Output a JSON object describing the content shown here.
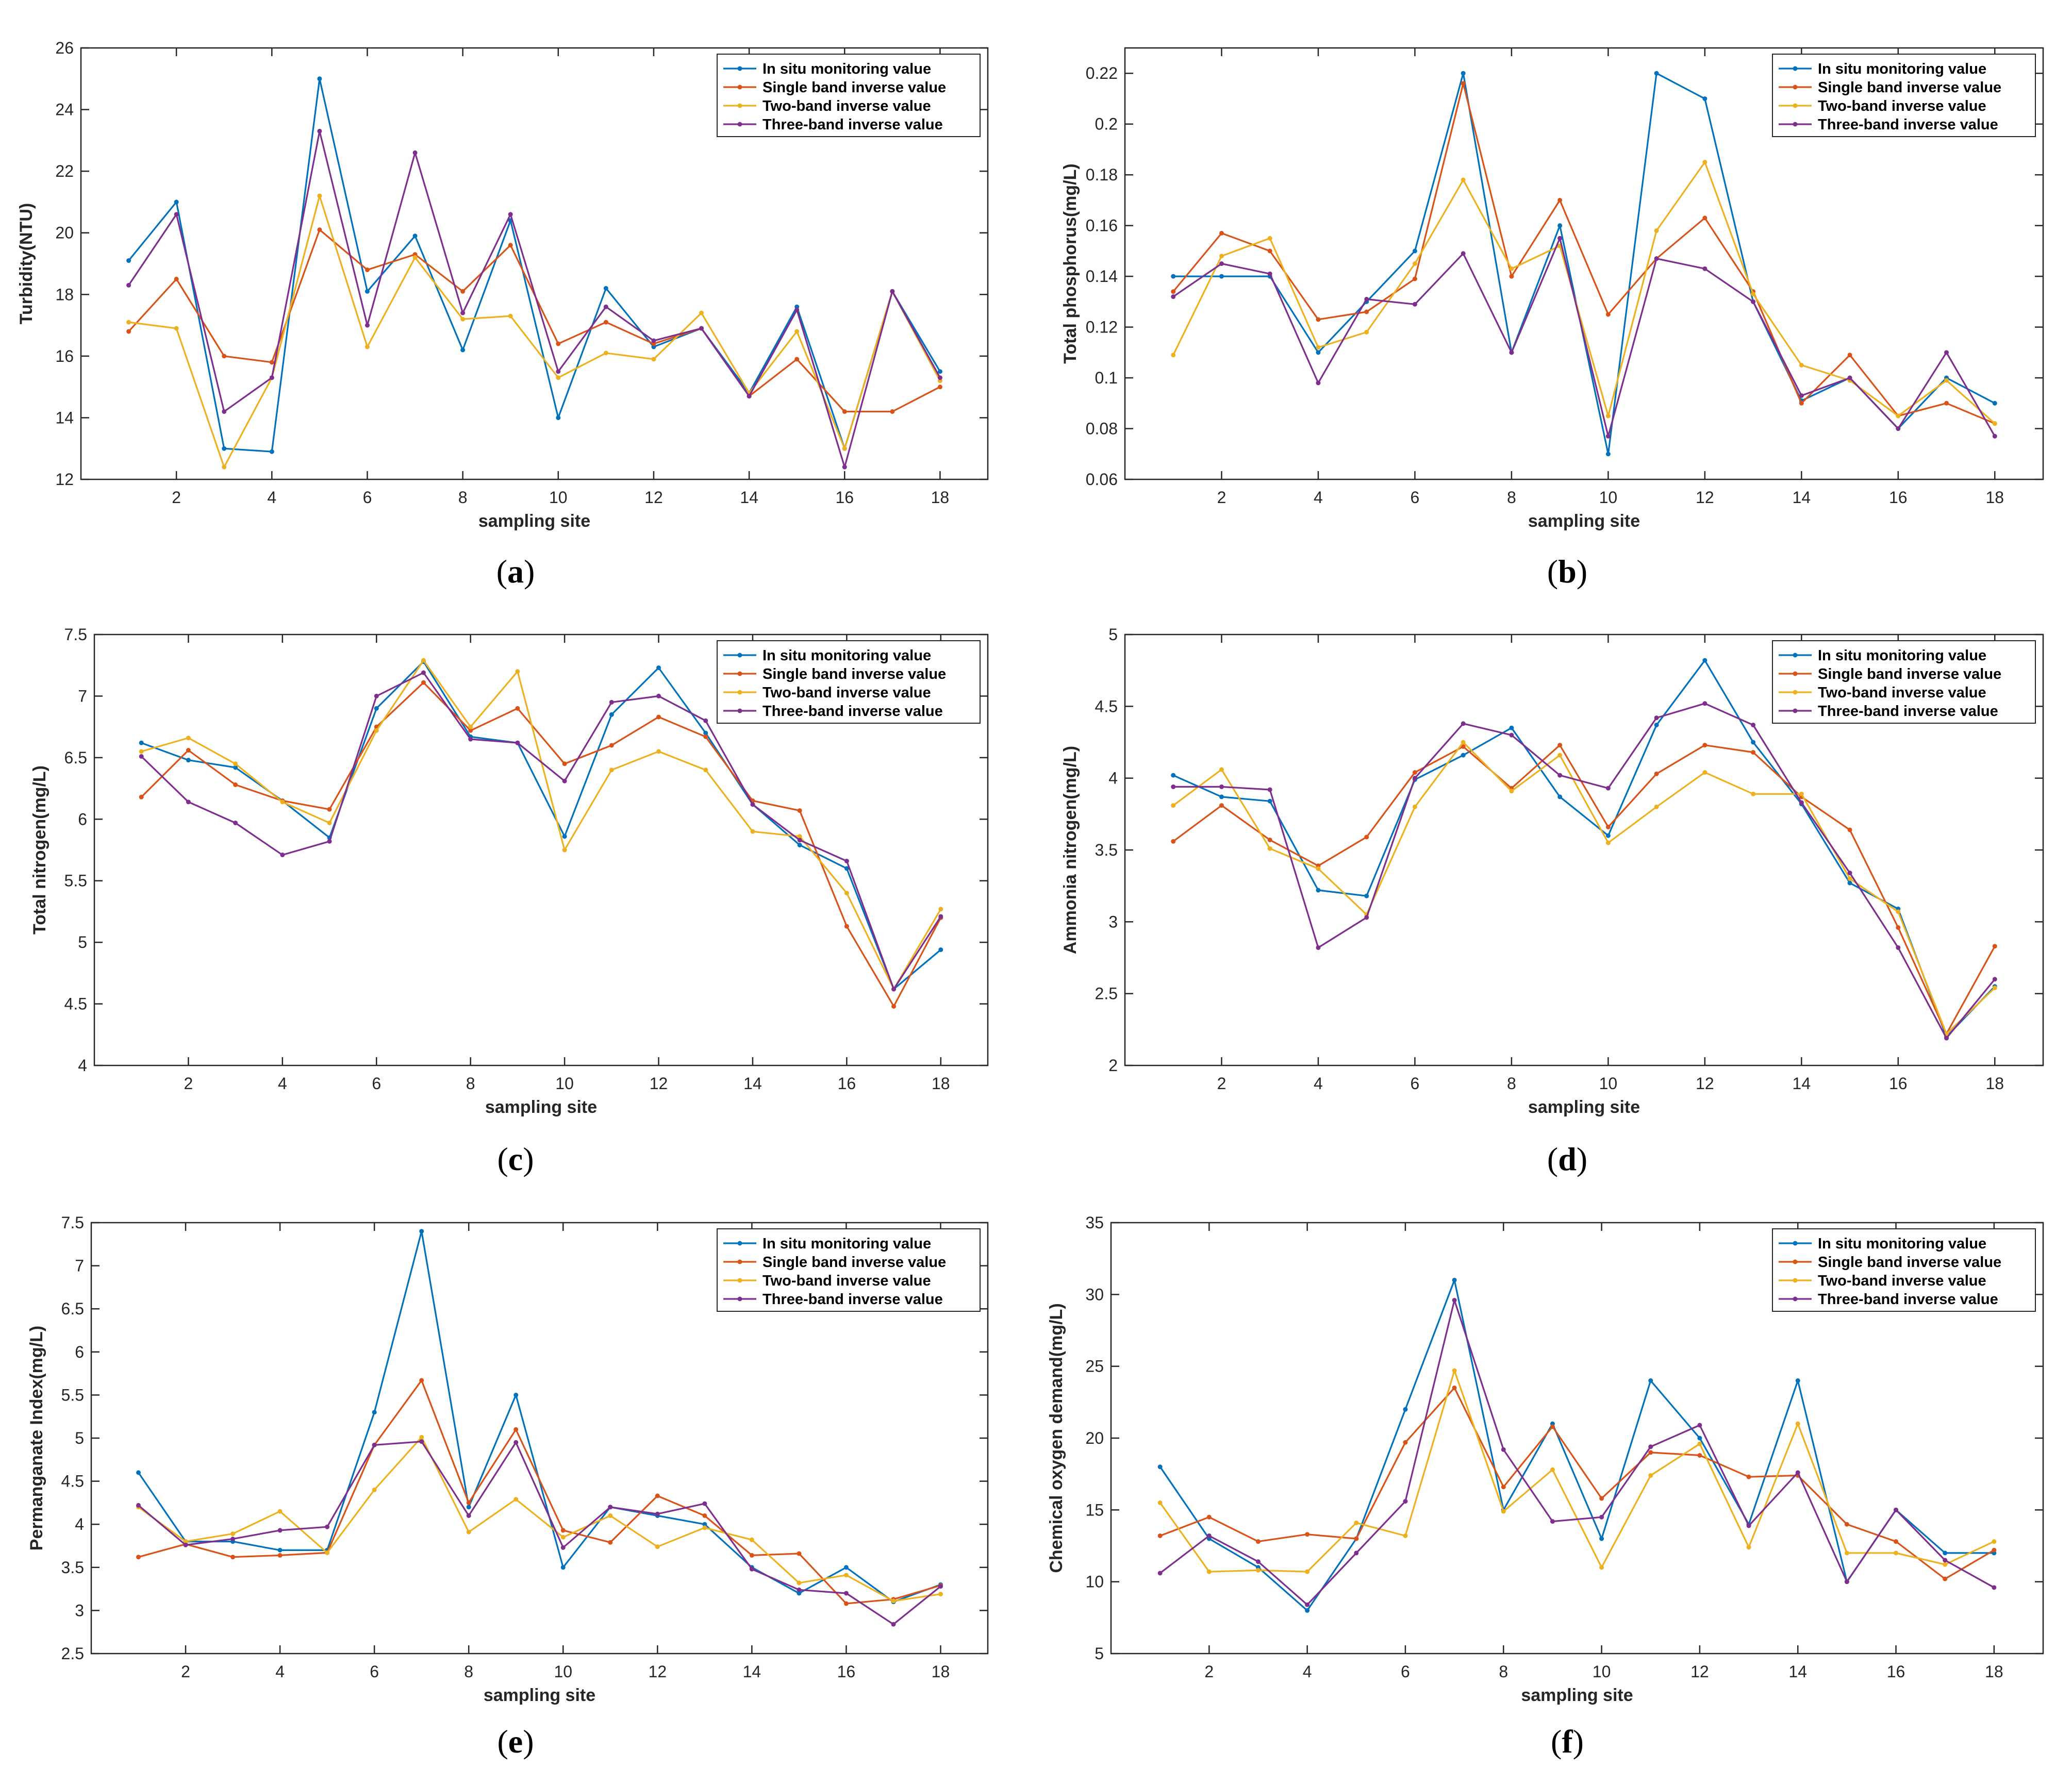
{
  "colors": {
    "in_situ": "#0072BD",
    "single": "#D95319",
    "two": "#EDB120",
    "three": "#7E2F8E",
    "axis": "#262626"
  },
  "chart_data": [
    {
      "panel": "a",
      "caption": "(a)",
      "caption_letter": "a",
      "type": "line",
      "xlabel": "sampling site",
      "ylabel": "Turbidity(NTU)",
      "xlim": [
        0,
        19
      ],
      "ylim": [
        12,
        26
      ],
      "xticks": [
        2,
        4,
        6,
        8,
        10,
        12,
        14,
        16,
        18
      ],
      "yticks": [
        12,
        14,
        16,
        18,
        20,
        22,
        24,
        26
      ],
      "ytick_labels": [
        "12",
        "14",
        "16",
        "18",
        "20",
        "22",
        "24",
        "26"
      ],
      "legend_position": "top-right",
      "x": [
        1,
        2,
        3,
        4,
        5,
        6,
        7,
        8,
        9,
        10,
        11,
        12,
        13,
        14,
        15,
        16,
        17,
        18
      ],
      "series": [
        {
          "name": "In situ monitoring value",
          "color_key": "in_situ",
          "values": [
            19.1,
            21.0,
            13.0,
            12.9,
            25.0,
            18.1,
            19.9,
            16.2,
            20.4,
            14.0,
            18.2,
            16.3,
            16.9,
            14.8,
            17.6,
            13.0,
            18.1,
            15.5
          ]
        },
        {
          "name": "Single band inverse value",
          "color_key": "single",
          "values": [
            16.8,
            18.5,
            16.0,
            15.8,
            20.1,
            18.8,
            19.3,
            18.1,
            19.6,
            16.4,
            17.1,
            16.4,
            16.9,
            14.7,
            15.9,
            14.2,
            14.2,
            15.0
          ]
        },
        {
          "name": "Two-band inverse value",
          "color_key": "two",
          "values": [
            17.1,
            16.9,
            12.4,
            15.3,
            21.2,
            16.3,
            19.2,
            17.2,
            17.3,
            15.3,
            16.1,
            15.9,
            17.4,
            14.8,
            16.8,
            13.0,
            18.1,
            15.2
          ]
        },
        {
          "name": "Three-band inverse value",
          "color_key": "three",
          "values": [
            18.3,
            20.6,
            14.2,
            15.3,
            23.3,
            17.0,
            22.6,
            17.4,
            20.6,
            15.5,
            17.6,
            16.5,
            16.9,
            14.7,
            17.5,
            12.4,
            18.1,
            15.3
          ]
        }
      ]
    },
    {
      "panel": "b",
      "caption": "(b)",
      "caption_letter": "b",
      "type": "line",
      "xlabel": "sampling site",
      "ylabel": "Total phosphorus(mg/L)",
      "xlim": [
        0,
        19
      ],
      "ylim": [
        0.06,
        0.23
      ],
      "xticks": [
        2,
        4,
        6,
        8,
        10,
        12,
        14,
        16,
        18
      ],
      "yticks": [
        0.06,
        0.08,
        0.1,
        0.12,
        0.14,
        0.16,
        0.18,
        0.2,
        0.22
      ],
      "ytick_labels": [
        "0.06",
        "0.08",
        "0.1",
        "0.12",
        "0.14",
        "0.16",
        "0.18",
        "0.2",
        "0.22"
      ],
      "legend_position": "top-right",
      "x": [
        1,
        2,
        3,
        4,
        5,
        6,
        7,
        8,
        9,
        10,
        11,
        12,
        13,
        14,
        15,
        16,
        17,
        18
      ],
      "series": [
        {
          "name": "In situ monitoring value",
          "color_key": "in_situ",
          "values": [
            0.14,
            0.14,
            0.14,
            0.11,
            0.13,
            0.15,
            0.22,
            0.11,
            0.16,
            0.07,
            0.22,
            0.21,
            0.13,
            0.091,
            0.1,
            0.08,
            0.1,
            0.09
          ]
        },
        {
          "name": "Single band inverse value",
          "color_key": "single",
          "values": [
            0.134,
            0.157,
            0.15,
            0.123,
            0.126,
            0.139,
            0.216,
            0.14,
            0.17,
            0.125,
            0.147,
            0.163,
            0.134,
            0.09,
            0.109,
            0.085,
            0.09,
            0.082
          ]
        },
        {
          "name": "Two-band inverse value",
          "color_key": "two",
          "values": [
            0.109,
            0.148,
            0.155,
            0.112,
            0.118,
            0.145,
            0.178,
            0.143,
            0.152,
            0.085,
            0.158,
            0.185,
            0.133,
            0.105,
            0.099,
            0.085,
            0.099,
            0.082
          ]
        },
        {
          "name": "Three-band inverse value",
          "color_key": "three",
          "values": [
            0.132,
            0.145,
            0.141,
            0.098,
            0.131,
            0.129,
            0.149,
            0.11,
            0.155,
            0.077,
            0.147,
            0.143,
            0.13,
            0.093,
            0.1,
            0.08,
            0.11,
            0.077
          ]
        }
      ]
    },
    {
      "panel": "c",
      "caption": "(c)",
      "caption_letter": "c",
      "type": "line",
      "xlabel": "sampling site",
      "ylabel": "Total nitrogen(mg/L)",
      "xlim": [
        0,
        19
      ],
      "ylim": [
        4,
        7.5
      ],
      "xticks": [
        2,
        4,
        6,
        8,
        10,
        12,
        14,
        16,
        18
      ],
      "yticks": [
        4,
        4.5,
        5,
        5.5,
        6,
        6.5,
        7,
        7.5
      ],
      "ytick_labels": [
        "4",
        "4.5",
        "5",
        "5.5",
        "6",
        "6.5",
        "7",
        "7.5"
      ],
      "legend_position": "top-right",
      "x": [
        1,
        2,
        3,
        4,
        5,
        6,
        7,
        8,
        9,
        10,
        11,
        12,
        13,
        14,
        15,
        16,
        17,
        18
      ],
      "series": [
        {
          "name": "In situ monitoring value",
          "color_key": "in_situ",
          "values": [
            6.62,
            6.48,
            6.42,
            6.15,
            5.85,
            6.9,
            7.28,
            6.67,
            6.62,
            5.86,
            6.85,
            7.23,
            6.7,
            6.12,
            5.79,
            5.6,
            4.62,
            4.94
          ]
        },
        {
          "name": "Single band inverse value",
          "color_key": "single",
          "values": [
            6.18,
            6.56,
            6.28,
            6.15,
            6.08,
            6.75,
            7.11,
            6.72,
            6.9,
            6.45,
            6.6,
            6.83,
            6.67,
            6.15,
            6.07,
            5.13,
            4.48,
            5.2
          ]
        },
        {
          "name": "Two-band inverse value",
          "color_key": "two",
          "values": [
            6.55,
            6.66,
            6.45,
            6.14,
            5.97,
            6.72,
            7.29,
            6.75,
            7.2,
            5.75,
            6.4,
            6.55,
            6.4,
            5.9,
            5.86,
            5.4,
            4.62,
            5.27
          ]
        },
        {
          "name": "Three-band inverse value",
          "color_key": "three",
          "values": [
            6.51,
            6.14,
            5.97,
            5.71,
            5.82,
            7.0,
            7.19,
            6.65,
            6.62,
            6.31,
            6.95,
            7.0,
            6.8,
            6.12,
            5.83,
            5.66,
            4.62,
            5.21
          ]
        }
      ]
    },
    {
      "panel": "d",
      "caption": "(d)",
      "caption_letter": "d",
      "type": "line",
      "xlabel": "sampling site",
      "ylabel": "Ammonia nitrogen(mg/L)",
      "xlim": [
        0,
        19
      ],
      "ylim": [
        2,
        5
      ],
      "xticks": [
        2,
        4,
        6,
        8,
        10,
        12,
        14,
        16,
        18
      ],
      "yticks": [
        2,
        2.5,
        3,
        3.5,
        4,
        4.5,
        5
      ],
      "ytick_labels": [
        "2",
        "2.5",
        "3",
        "3.5",
        "4",
        "4.5",
        "5"
      ],
      "legend_position": "top-right",
      "x": [
        1,
        2,
        3,
        4,
        5,
        6,
        7,
        8,
        9,
        10,
        11,
        12,
        13,
        14,
        15,
        16,
        17,
        18
      ],
      "series": [
        {
          "name": "In situ monitoring value",
          "color_key": "in_situ",
          "values": [
            4.02,
            3.87,
            3.84,
            3.22,
            3.18,
            3.99,
            4.16,
            4.35,
            3.87,
            3.6,
            4.37,
            4.82,
            4.25,
            3.82,
            3.27,
            3.09,
            2.2,
            2.55
          ]
        },
        {
          "name": "Single band inverse value",
          "color_key": "single",
          "values": [
            3.56,
            3.81,
            3.57,
            3.39,
            3.59,
            4.04,
            4.22,
            3.93,
            4.23,
            3.66,
            4.03,
            4.23,
            4.18,
            3.87,
            3.64,
            2.96,
            2.22,
            2.83
          ]
        },
        {
          "name": "Two-band inverse value",
          "color_key": "two",
          "values": [
            3.81,
            4.06,
            3.51,
            3.37,
            3.05,
            3.8,
            4.25,
            3.91,
            4.16,
            3.55,
            3.8,
            4.04,
            3.89,
            3.89,
            3.3,
            3.07,
            2.22,
            2.54
          ]
        },
        {
          "name": "Three-band inverse value",
          "color_key": "three",
          "values": [
            3.94,
            3.94,
            3.92,
            2.82,
            3.03,
            4.0,
            4.38,
            4.3,
            4.02,
            3.93,
            4.42,
            4.52,
            4.37,
            3.83,
            3.34,
            2.82,
            2.19,
            2.6
          ]
        }
      ]
    },
    {
      "panel": "e",
      "caption": "(e)",
      "caption_letter": "e",
      "type": "line",
      "xlabel": "sampling site",
      "ylabel": "Permanganate Index(mg/L)",
      "xlim": [
        0,
        19
      ],
      "ylim": [
        2.5,
        7.5
      ],
      "xticks": [
        2,
        4,
        6,
        8,
        10,
        12,
        14,
        16,
        18
      ],
      "yticks": [
        2.5,
        3,
        3.5,
        4,
        4.5,
        5,
        5.5,
        6,
        6.5,
        7,
        7.5
      ],
      "ytick_labels": [
        "2.5",
        "3",
        "3.5",
        "4",
        "4.5",
        "5",
        "5.5",
        "6",
        "6.5",
        "7",
        "7.5"
      ],
      "legend_position": "top-right",
      "x": [
        1,
        2,
        3,
        4,
        5,
        6,
        7,
        8,
        9,
        10,
        11,
        12,
        13,
        14,
        15,
        16,
        17,
        18
      ],
      "series": [
        {
          "name": "In situ monitoring value",
          "color_key": "in_situ",
          "values": [
            4.6,
            3.8,
            3.8,
            3.7,
            3.7,
            5.3,
            7.4,
            4.2,
            5.5,
            3.5,
            4.2,
            4.1,
            4.0,
            3.5,
            3.2,
            3.5,
            3.1,
            3.3
          ]
        },
        {
          "name": "Single band inverse value",
          "color_key": "single",
          "values": [
            3.62,
            3.77,
            3.62,
            3.64,
            3.67,
            4.92,
            5.67,
            4.25,
            5.1,
            3.93,
            3.79,
            4.33,
            4.1,
            3.64,
            3.66,
            3.08,
            3.13,
            3.29
          ]
        },
        {
          "name": "Two-band inverse value",
          "color_key": "two",
          "values": [
            4.2,
            3.8,
            3.89,
            4.15,
            3.67,
            4.4,
            5.01,
            3.91,
            4.29,
            3.85,
            4.1,
            3.74,
            3.96,
            3.82,
            3.32,
            3.41,
            3.11,
            3.19
          ]
        },
        {
          "name": "Three-band inverse value",
          "color_key": "three",
          "values": [
            4.22,
            3.76,
            3.83,
            3.93,
            3.97,
            4.92,
            4.96,
            4.1,
            4.95,
            3.73,
            4.2,
            4.12,
            4.24,
            3.48,
            3.24,
            3.2,
            2.84,
            3.28
          ]
        }
      ]
    },
    {
      "panel": "f",
      "caption": "(f)",
      "caption_letter": "f",
      "type": "line",
      "xlabel": "sampling site",
      "ylabel": "Chemical oxygen demand(mg/L)",
      "xlim": [
        0,
        19
      ],
      "ylim": [
        5,
        35
      ],
      "xticks": [
        2,
        4,
        6,
        8,
        10,
        12,
        14,
        16,
        18
      ],
      "yticks": [
        5,
        10,
        15,
        20,
        25,
        30,
        35
      ],
      "ytick_labels": [
        "5",
        "10",
        "15",
        "20",
        "25",
        "30",
        "35"
      ],
      "legend_position": "top-right",
      "x": [
        1,
        2,
        3,
        4,
        5,
        6,
        7,
        8,
        9,
        10,
        11,
        12,
        13,
        14,
        15,
        16,
        17,
        18
      ],
      "series": [
        {
          "name": "In situ monitoring value",
          "color_key": "in_situ",
          "values": [
            18.0,
            13.0,
            11.0,
            8.0,
            13.0,
            22.0,
            31.0,
            15.0,
            21.0,
            13.0,
            24.0,
            20.0,
            14.0,
            24.0,
            10.0,
            15.0,
            12.0,
            12.0
          ]
        },
        {
          "name": "Single band inverse value",
          "color_key": "single",
          "values": [
            13.2,
            14.5,
            12.8,
            13.3,
            13.0,
            19.7,
            23.5,
            16.6,
            20.8,
            15.8,
            19.0,
            18.8,
            17.3,
            17.4,
            14.0,
            12.8,
            10.2,
            12.2
          ]
        },
        {
          "name": "Two-band inverse value",
          "color_key": "two",
          "values": [
            15.5,
            10.7,
            10.8,
            10.7,
            14.1,
            13.2,
            24.7,
            14.9,
            17.8,
            11.0,
            17.4,
            19.6,
            12.4,
            21.0,
            12.0,
            12.0,
            11.2,
            12.8
          ]
        },
        {
          "name": "Three-band inverse value",
          "color_key": "three",
          "values": [
            10.6,
            13.2,
            11.4,
            8.4,
            12.0,
            15.6,
            29.6,
            19.2,
            14.2,
            14.5,
            19.4,
            20.9,
            13.9,
            17.6,
            10.0,
            15.0,
            11.5,
            9.6
          ]
        }
      ]
    }
  ]
}
